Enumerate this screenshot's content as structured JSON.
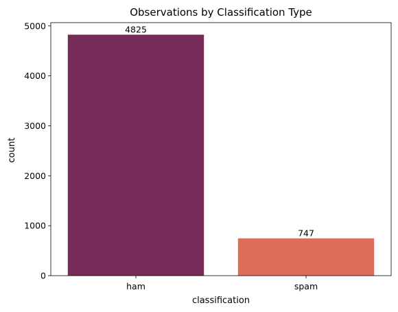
{
  "chart_data": {
    "type": "bar",
    "title": "Observations by Classification Type",
    "xlabel": "classification",
    "ylabel": "count",
    "categories": [
      "ham",
      "spam"
    ],
    "values": [
      4825,
      747
    ],
    "data_labels": [
      "4825",
      "747"
    ],
    "colors": [
      "#782c5a",
      "#dc6e58"
    ],
    "ylim": [
      0,
      5066
    ],
    "yticks": [
      0,
      1000,
      2000,
      3000,
      4000,
      5000
    ],
    "ytick_labels": [
      "0",
      "1000",
      "2000",
      "3000",
      "4000",
      "5000"
    ],
    "grid": false,
    "legend": "none"
  }
}
